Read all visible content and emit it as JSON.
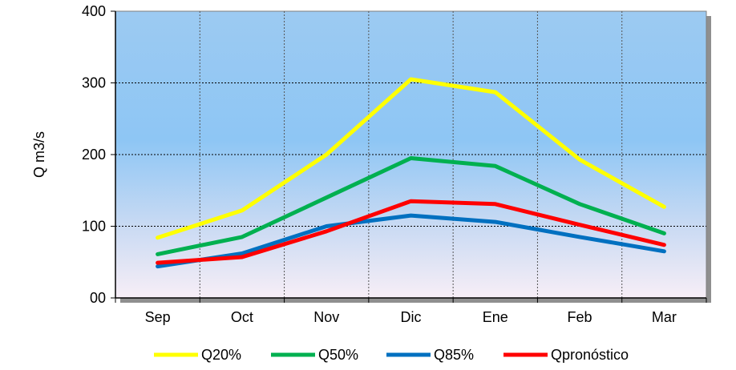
{
  "chart_data": {
    "type": "line",
    "title": "",
    "xlabel": "",
    "ylabel": "Q m3/s",
    "categories": [
      "Sep",
      "Oct",
      "Nov",
      "Dic",
      "Ene",
      "Feb",
      "Mar"
    ],
    "ylim": [
      0,
      400
    ],
    "yticks": [
      0,
      100,
      200,
      300,
      400
    ],
    "ytick_labels": [
      "00",
      "100",
      "200",
      "300",
      "400"
    ],
    "grid": true,
    "legend_position": "bottom",
    "series": [
      {
        "name": "Q20%",
        "color": "#ffff00",
        "values": [
          84,
          122,
          200,
          305,
          287,
          193,
          127
        ]
      },
      {
        "name": "Q50%",
        "color": "#00b050",
        "values": [
          61,
          85,
          140,
          195,
          184,
          131,
          90
        ]
      },
      {
        "name": "Q85%",
        "color": "#0070c0",
        "values": [
          44,
          62,
          100,
          115,
          106,
          85,
          65
        ]
      },
      {
        "name": "Qpronóstico",
        "color": "#ff0000",
        "values": [
          49,
          57,
          93,
          135,
          131,
          102,
          74
        ]
      }
    ]
  }
}
